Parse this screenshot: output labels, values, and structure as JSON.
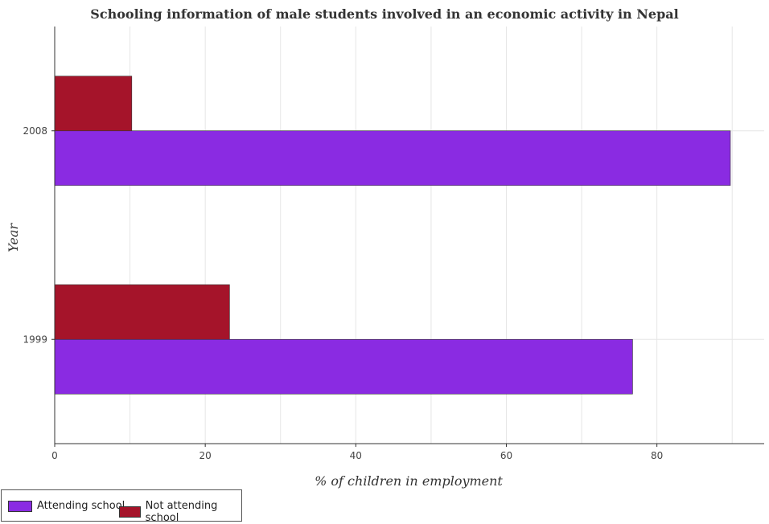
{
  "chart_data": {
    "type": "bar",
    "orientation": "horizontal",
    "title": "Schooling information of male students involved in an economic activity in Nepal",
    "xlabel": "% of children in employment",
    "ylabel": "Year",
    "categories": [
      "1999",
      "2008"
    ],
    "series": [
      {
        "name": "Attending school",
        "color": "#8a2be2",
        "values": [
          76.77,
          89.76
        ]
      },
      {
        "name": "Not attending school",
        "color": "#a5142a",
        "values": [
          23.23,
          10.24
        ]
      }
    ],
    "xlim": [
      0,
      94.25
    ],
    "xticks": [
      0,
      20,
      40,
      60,
      80
    ],
    "grid": true,
    "legend_position": "bottom-left"
  }
}
